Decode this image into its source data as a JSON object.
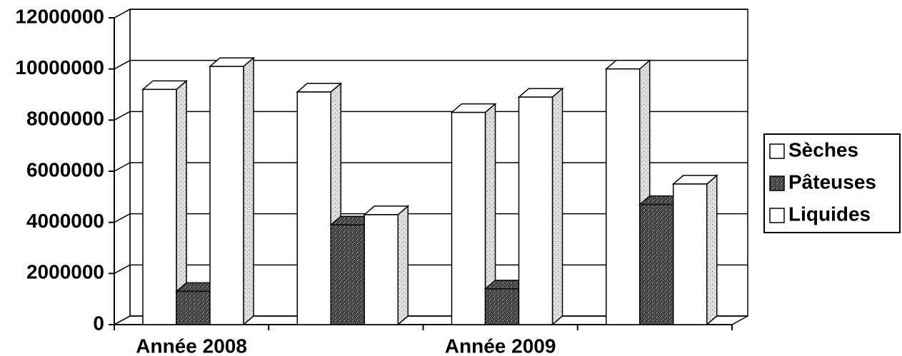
{
  "chart_data": {
    "type": "bar",
    "categories": [
      "Année 2008",
      null,
      "Année 2009",
      null
    ],
    "series": [
      {
        "name": "Sèches",
        "color": "#ffffff",
        "values": [
          9200000,
          9100000,
          8300000,
          10000000
        ]
      },
      {
        "name": "Pâteuses",
        "color": "#5a5a5a",
        "values": [
          1300000,
          3900000,
          1400000,
          4700000
        ]
      },
      {
        "name": "Liquides",
        "color": "#ffffff",
        "values": [
          10100000,
          4300000,
          8900000,
          5500000
        ]
      }
    ],
    "ylim": [
      0,
      12000000
    ],
    "yticks": [
      0,
      2000000,
      4000000,
      6000000,
      8000000,
      10000000,
      12000000
    ],
    "grid": true,
    "legend": "right"
  }
}
